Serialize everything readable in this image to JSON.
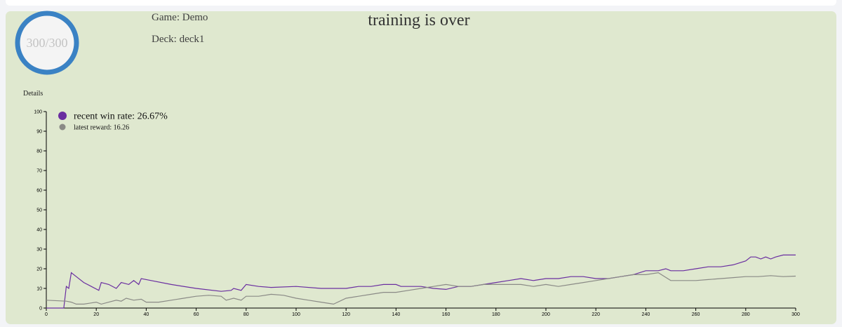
{
  "header": {
    "progress_label": "300/300",
    "progress_fraction": 1.0,
    "game_label": "Game: Demo",
    "deck_label": "Deck: deck1",
    "status_title": "training is over",
    "details_label": "Details"
  },
  "colors": {
    "win_rate": "#6a2ea0",
    "reward": "#8a8a86",
    "ring": "#3a82c4",
    "panel": "#dfe8cf"
  },
  "chart_data": {
    "type": "line",
    "xlim": [
      0,
      300
    ],
    "ylim": [
      0,
      100
    ],
    "x_ticks": [
      "0",
      "20",
      "40",
      "60",
      "80",
      "100",
      "120",
      "140",
      "160",
      "180",
      "200",
      "220",
      "240",
      "260",
      "280",
      "300"
    ],
    "y_ticks": [
      "0",
      "10",
      "20",
      "30",
      "40",
      "50",
      "60",
      "70",
      "80",
      "90",
      "100"
    ],
    "legend": [
      {
        "label": "recent win rate: 26.67%",
        "color": "#6a2ea0"
      },
      {
        "label": "latest reward: 16.26",
        "color": "#8a8a86"
      }
    ],
    "series": [
      {
        "color": "#6a2ea0",
        "x": [
          0,
          7,
          8,
          9,
          10,
          12,
          15,
          18,
          21,
          22,
          25,
          28,
          30,
          33,
          35,
          37,
          38,
          42,
          50,
          60,
          70,
          74,
          75,
          78,
          80,
          85,
          90,
          100,
          110,
          120,
          125,
          130,
          135,
          140,
          142,
          150,
          155,
          160,
          165,
          170,
          175,
          180,
          185,
          190,
          195,
          200,
          205,
          210,
          215,
          220,
          225,
          230,
          235,
          240,
          245,
          248,
          250,
          255,
          260,
          265,
          270,
          275,
          280,
          282,
          284,
          286,
          288,
          290,
          292,
          295,
          300
        ],
        "y": [
          0,
          0,
          11,
          10,
          18,
          16,
          13,
          11,
          9,
          13,
          12,
          10,
          13,
          12,
          14,
          12,
          15,
          14,
          12,
          10,
          8.5,
          9,
          10,
          9,
          12,
          11,
          10.5,
          11,
          10,
          10,
          11,
          11,
          12,
          12,
          11,
          11,
          10,
          9.5,
          11,
          11,
          12,
          13,
          14,
          15,
          14,
          15,
          15,
          16,
          16,
          15,
          15,
          16,
          17,
          19,
          19,
          20,
          19,
          19,
          20,
          21,
          21,
          22,
          24,
          26,
          26,
          25,
          26,
          25,
          26,
          27,
          27
        ]
      },
      {
        "color": "#8a8a86",
        "x": [
          0,
          8,
          10,
          12,
          15,
          20,
          22,
          25,
          28,
          30,
          32,
          35,
          38,
          40,
          45,
          50,
          55,
          60,
          65,
          70,
          72,
          75,
          78,
          80,
          85,
          90,
          95,
          100,
          105,
          110,
          115,
          120,
          125,
          130,
          135,
          140,
          145,
          150,
          155,
          160,
          165,
          170,
          175,
          180,
          185,
          190,
          195,
          200,
          205,
          210,
          215,
          220,
          225,
          230,
          235,
          240,
          245,
          250,
          255,
          260,
          265,
          270,
          275,
          280,
          285,
          290,
          295,
          300
        ],
        "y": [
          4,
          3.5,
          3,
          2,
          2,
          3,
          2,
          3,
          4,
          3.5,
          5,
          4,
          4.5,
          3,
          3,
          4,
          5,
          6,
          6.5,
          6,
          4,
          5,
          4,
          6,
          6,
          7,
          6.5,
          5,
          4,
          3,
          2,
          5,
          6,
          7,
          8,
          8,
          9,
          10,
          11,
          12,
          11,
          11,
          12,
          12,
          12,
          12,
          11,
          12,
          11,
          12,
          13,
          14,
          15,
          16,
          17,
          17,
          18,
          14,
          14,
          14,
          14.5,
          15,
          15.5,
          16,
          16,
          16.5,
          16,
          16.26
        ]
      }
    ]
  }
}
